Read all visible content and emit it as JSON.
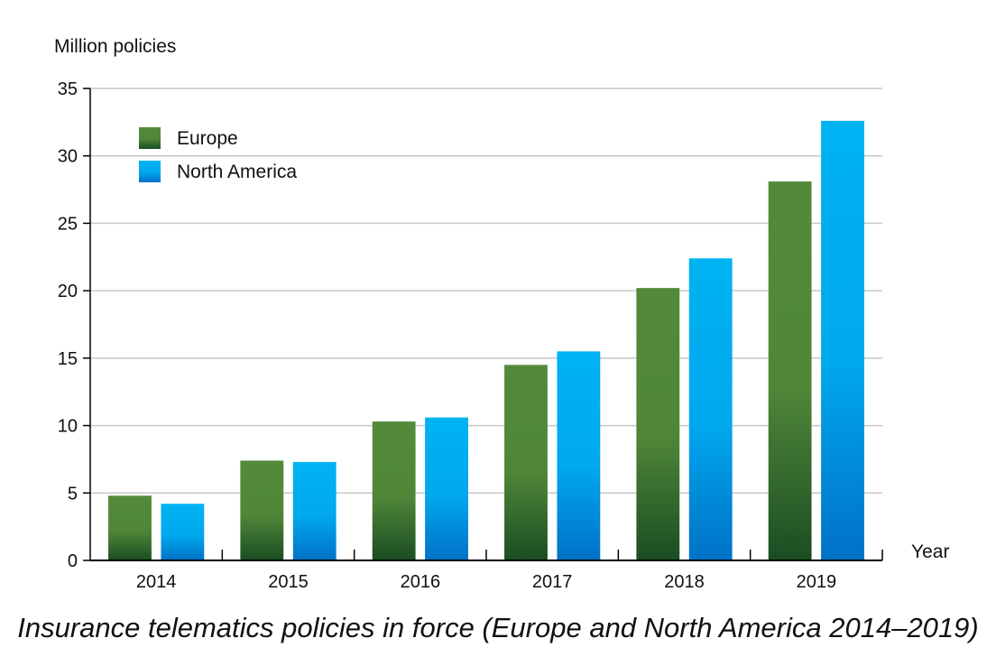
{
  "caption": "Insurance telematics policies in force (Europe and North America 2014–2019)",
  "colors": {
    "europe_top": "#538a3a",
    "europe_bottom": "#1a4d22",
    "north_america_top": "#00b3f2",
    "north_america_bottom": "#0071c6",
    "grid": "#c8c8c8",
    "axis": "#000000"
  },
  "chart_data": {
    "type": "bar",
    "title": "",
    "xlabel": "Year",
    "ylabel": "Million policies",
    "categories": [
      "2014",
      "2015",
      "2016",
      "2017",
      "2018",
      "2019"
    ],
    "series": [
      {
        "name": "Europe",
        "values": [
          4.8,
          7.4,
          10.3,
          14.5,
          20.2,
          28.1
        ]
      },
      {
        "name": "North America",
        "values": [
          4.2,
          7.3,
          10.6,
          15.5,
          22.4,
          32.6
        ]
      }
    ],
    "ylim": [
      0,
      35
    ],
    "yticks": [
      "0",
      "5",
      "10",
      "15",
      "20",
      "25",
      "30",
      "35"
    ],
    "grid": true,
    "legend": "top-left"
  }
}
